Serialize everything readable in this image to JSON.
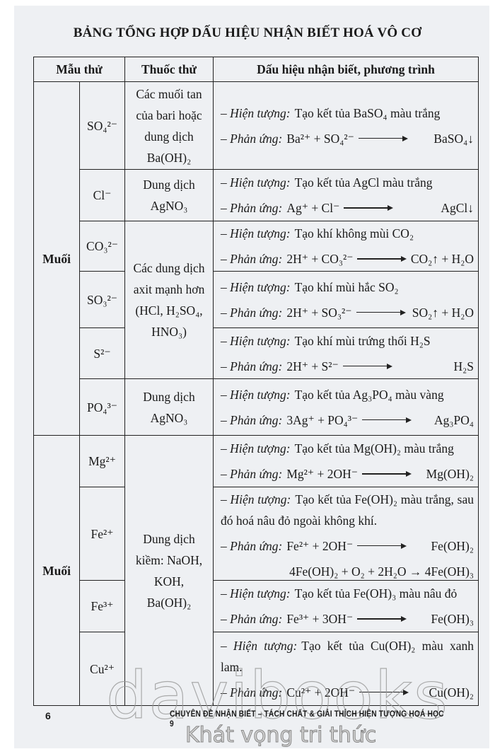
{
  "title": "BẢNG TỔNG HỢP DẤU HIỆU NHẬN BIẾT HOÁ VÔ CƠ",
  "headers": [
    "Mẫu thử",
    "Thuốc thử",
    "Dấu hiệu nhận biết, phương trình"
  ],
  "groups": [
    "Muối",
    "Muối"
  ],
  "samples": [
    "SO₄²⁻",
    "Cl⁻",
    "CO₃²⁻",
    "SO₃²⁻",
    "S²⁻",
    "PO₄³⁻",
    "Mg²⁺",
    "Fe²⁺",
    "Fe³⁺",
    "Cu²⁺"
  ],
  "reagents": [
    "Các muối tan của bari hoặc dung dịch Ba(OH)₂",
    "Dung dịch AgNO₃",
    "Các dung dịch axit mạnh hơn (HCl, H₂SO₄, HNO₃)",
    "Dung dịch AgNO₃",
    "Dung dịch kiềm: NaOH, KOH, Ba(OH)₂"
  ],
  "labels": {
    "phenomenon": "– Hiện tượng:",
    "reaction": "– Phản ứng:"
  },
  "signs": [
    {
      "ph": "Tạo kết tủa BaSO₄ màu trắng",
      "lhs": "Ba²⁺ + SO₄²⁻",
      "rhs": "BaSO₄↓"
    },
    {
      "ph": "Tạo kết tủa AgCl màu trắng",
      "lhs": "Ag⁺ + Cl⁻",
      "rhs": "AgCl↓"
    },
    {
      "ph": "Tạo khí không mùi CO₂",
      "lhs": "2H⁺ + CO₃²⁻",
      "rhs": "CO₂↑ + H₂O"
    },
    {
      "ph": "Tạo khí mùi hắc SO₂",
      "lhs": "2H⁺ + SO₃²⁻",
      "rhs": "SO₂↑ + H₂O"
    },
    {
      "ph": "Tạo khí mùi trứng thối H₂S",
      "lhs": "2H⁺ + S²⁻",
      "rhs": "H₂S"
    },
    {
      "ph": "Tạo kết tủa Ag₃PO₄ màu vàng",
      "lhs": "3Ag⁺ + PO₄³⁻",
      "rhs": "Ag₃PO₄"
    },
    {
      "ph": "Tạo kết tủa Mg(OH)₂ màu trắng",
      "lhs": "Mg²⁺ + 2OH⁻",
      "rhs": "Mg(OH)₂"
    },
    {
      "ph": "Tạo kết tủa Fe(OH)₂ màu trắng, sau đó hoá nâu đỏ ngoài không khí.",
      "lhs": "Fe²⁺ + 2OH⁻",
      "rhs": "Fe(OH)₂",
      "extra": "4Fe(OH)₂ + O₂ + 2H₂O → 4Fe(OH)₃"
    },
    {
      "ph": "Tạo kết tủa Fe(OH)₃ màu nâu đỏ",
      "lhs": "Fe³⁺ + 3OH⁻",
      "rhs": "Fe(OH)₃"
    },
    {
      "ph": "Tạo kết tủa Cu(OH)₂ màu xanh lam.",
      "lhs": "Cu²⁺ + 2OH⁻",
      "rhs": "Cu(OH)₂"
    }
  ],
  "footer": {
    "page_number": "6",
    "book_title": "CHUYÊN ĐỀ NHẬN BIẾT – TÁCH CHẤT & GIẢI THÍCH HIỆN TƯỢNG HOÁ HỌC 9"
  },
  "watermark": {
    "brand": "davibooks",
    "slogan": "Khát vọng tri thức"
  }
}
